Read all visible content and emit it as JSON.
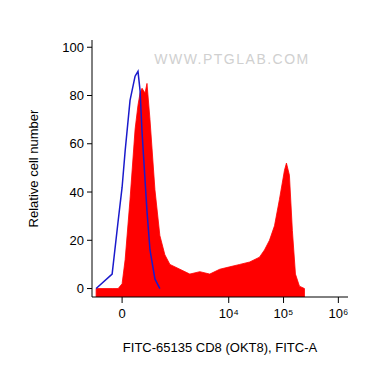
{
  "chart_data": {
    "type": "histogram",
    "watermark": "WWW.PTGLAB.COM",
    "x_label": "FITC-65135 CD8 (OKT8), FITC-A",
    "y_label": "Relative cell number",
    "x": [
      -300,
      -98,
      -38,
      0,
      29,
      77,
      130,
      163,
      188,
      213,
      254,
      283,
      331,
      422,
      531,
      665,
      831,
      1276,
      1945,
      2965,
      4504,
      6855,
      10420,
      15860,
      24100,
      36400,
      44900,
      55400,
      68400,
      84300,
      104000,
      113000,
      128000,
      145000,
      165000,
      195000,
      241000
    ],
    "series": [
      {
        "type": "area",
        "color": "#ff0000",
        "values": [
          0,
          0,
          0,
          2,
          12,
          37,
          66,
          76,
          81,
          83,
          81,
          85,
          70,
          41,
          22,
          14,
          10,
          8,
          6,
          7,
          6,
          8,
          9,
          10,
          11,
          13,
          16,
          20,
          26,
          37,
          49,
          52,
          47,
          24,
          6,
          1,
          0
        ]
      },
      {
        "type": "line",
        "color": "#1a1acc",
        "values": [
          0,
          6,
          28,
          42,
          57,
          78,
          88,
          90,
          82,
          65,
          45,
          32,
          16,
          4,
          0,
          null,
          null,
          null,
          null,
          null,
          null,
          null,
          null,
          null,
          null,
          null,
          null,
          null,
          null,
          null,
          null,
          null,
          null,
          null,
          null,
          null,
          null
        ]
      }
    ],
    "xlim": [
      -370,
      1500000
    ],
    "xticks": [
      0,
      {
        "value": 10000,
        "label": "10⁴"
      },
      {
        "value": 100000,
        "label": "10⁵"
      },
      {
        "value": 1000000,
        "label": "10⁶"
      }
    ],
    "ylim": [
      -3.5,
      103
    ],
    "yticks": [
      0,
      20,
      40,
      60,
      80,
      100
    ],
    "grid": false
  }
}
